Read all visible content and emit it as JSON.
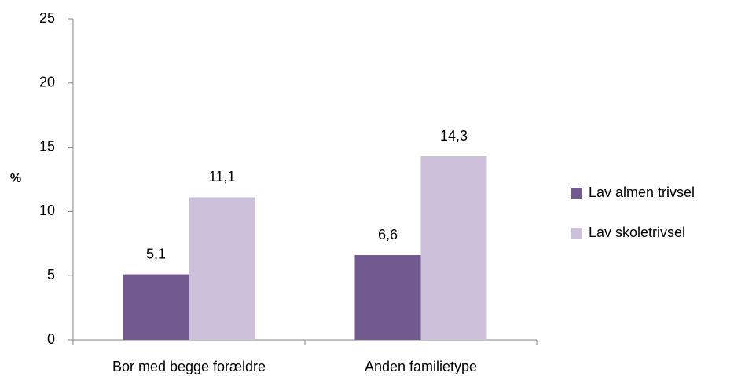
{
  "chart_data": {
    "type": "bar",
    "y_label": "%",
    "categories": [
      "Bor med begge forældre",
      "Anden familietype"
    ],
    "series": [
      {
        "name": "Lav almen trivsel",
        "color": "#72598f",
        "values": [
          5.1,
          6.6
        ],
        "value_labels": [
          "5,1",
          "6,6"
        ]
      },
      {
        "name": "Lav skoletrivsel",
        "color": "#ccc0da",
        "values": [
          11.1,
          14.3
        ],
        "value_labels": [
          "11,1",
          "14,3"
        ]
      }
    ],
    "ylim": [
      0,
      25
    ],
    "yticks": [
      0,
      5,
      10,
      15,
      20,
      25
    ],
    "grid": false,
    "legend": "right"
  }
}
